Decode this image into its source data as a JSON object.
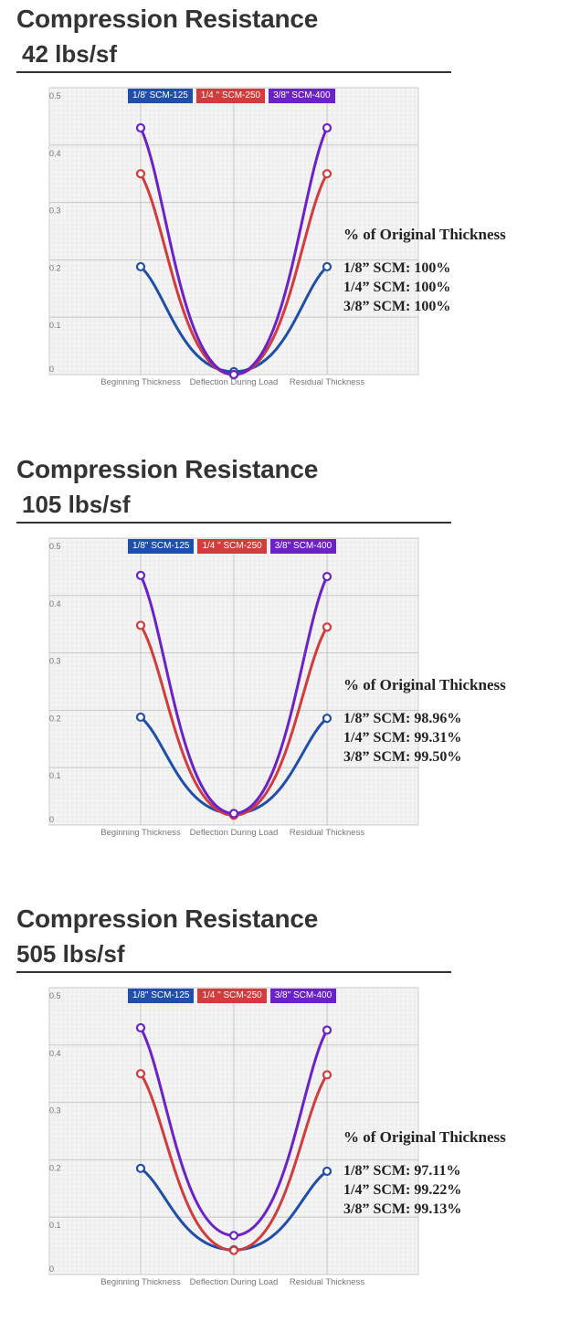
{
  "palette": {
    "scm125": "#1f4fa8",
    "scm250": "#d23c3c",
    "scm400": "#6c22c9"
  },
  "sections": [
    {
      "heading": "Compression Resistance",
      "load": "42 lbs/sf",
      "notes": {
        "title": "% of Original Thickness",
        "lines": [
          "1/8” SCM: 100%",
          "1/4” SCM: 100%",
          "3/8” SCM: 100%"
        ]
      },
      "legend": [
        "1/8' SCM-125",
        "1/4 \" SCM-250",
        "3/8\" SCM-400"
      ]
    },
    {
      "heading": "Compression Resistance",
      "load": "105 lbs/sf",
      "notes": {
        "title": "% of Original Thickness",
        "lines": [
          "1/8” SCM: 98.96%",
          "1/4” SCM: 99.31%",
          "3/8” SCM: 99.50%"
        ]
      },
      "legend": [
        "1/8\" SCM-125",
        "1/4 \" SCM-250",
        "3/8\" SCM-400"
      ]
    },
    {
      "heading": "Compression Resistance",
      "load": "505 lbs/sf",
      "notes": {
        "title": "% of Original Thickness",
        "lines": [
          "1/8” SCM: 97.11%",
          "1/4” SCM: 99.22%",
          "3/8” SCM: 99.13%"
        ]
      },
      "legend": [
        "1/8\" SCM-125",
        "1/4 \" SCM-250",
        "3/8\" SCM-400"
      ]
    }
  ],
  "chart_data": [
    {
      "type": "line",
      "categories": [
        "Beginning Thickness",
        "Deflection During Load",
        "Residual Thickness"
      ],
      "ylim": [
        0,
        0.5
      ],
      "yticks": [
        "0",
        "0.1",
        "0.2",
        "0.3",
        "0.4",
        "0.5"
      ],
      "grid": true,
      "legend_position": "bottom",
      "series": [
        {
          "name": "1/8' SCM-125",
          "color": "#1f4fa8",
          "values": [
            0.188,
            0.005,
            0.188
          ]
        },
        {
          "name": "1/4 \" SCM-250",
          "color": "#d23c3c",
          "values": [
            0.35,
            0.0,
            0.35
          ]
        },
        {
          "name": "3/8\" SCM-400",
          "color": "#6c22c9",
          "values": [
            0.43,
            0.0,
            0.43
          ]
        }
      ]
    },
    {
      "type": "line",
      "categories": [
        "Beginning Thickness",
        "Deflection During Load",
        "Residual Thickness"
      ],
      "ylim": [
        0,
        0.5
      ],
      "yticks": [
        "0",
        "0.1",
        "0.2",
        "0.3",
        "0.4",
        "0.5"
      ],
      "grid": true,
      "legend_position": "bottom",
      "series": [
        {
          "name": "1/8\" SCM-125",
          "color": "#1f4fa8",
          "values": [
            0.188,
            0.02,
            0.186
          ]
        },
        {
          "name": "1/4 \" SCM-250",
          "color": "#d23c3c",
          "values": [
            0.348,
            0.017,
            0.345
          ]
        },
        {
          "name": "3/8\" SCM-400",
          "color": "#6c22c9",
          "values": [
            0.435,
            0.02,
            0.433
          ]
        }
      ]
    },
    {
      "type": "line",
      "categories": [
        "Beginning Thickness",
        "Deflection During Load",
        "Residual Thickness"
      ],
      "ylim": [
        0,
        0.5
      ],
      "yticks": [
        "0",
        "0.1",
        "0.2",
        "0.3",
        "0.4",
        "0.5"
      ],
      "grid": true,
      "legend_position": "bottom",
      "series": [
        {
          "name": "1/8\" SCM-125",
          "color": "#1f4fa8",
          "values": [
            0.185,
            0.043,
            0.18
          ]
        },
        {
          "name": "1/4 \" SCM-250",
          "color": "#d23c3c",
          "values": [
            0.35,
            0.042,
            0.348
          ]
        },
        {
          "name": "3/8\" SCM-400",
          "color": "#6c22c9",
          "values": [
            0.43,
            0.068,
            0.426
          ]
        }
      ]
    }
  ]
}
